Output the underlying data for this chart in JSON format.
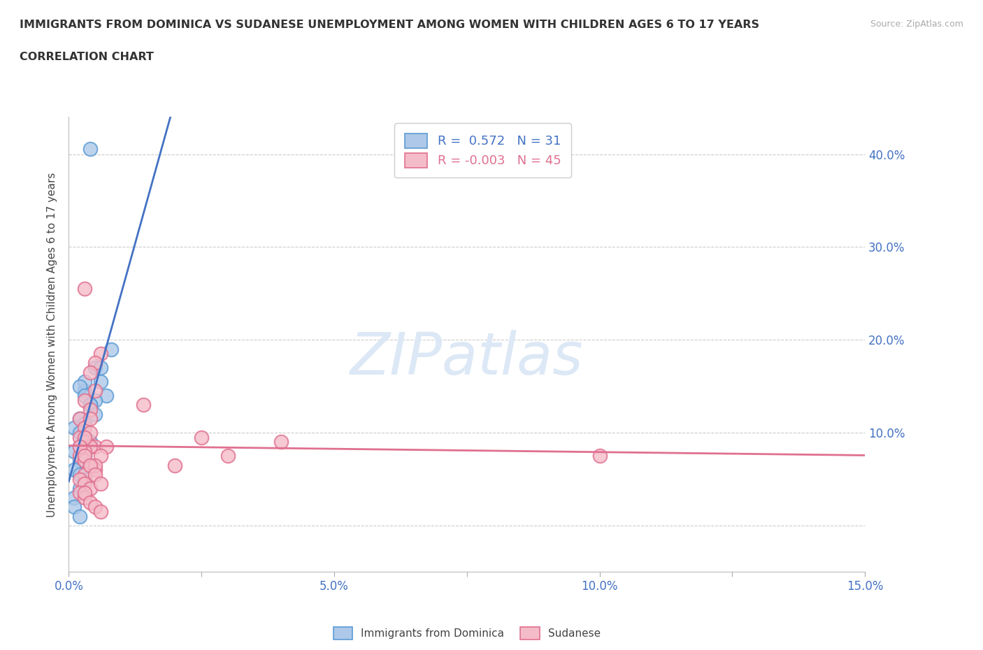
{
  "title_line1": "IMMIGRANTS FROM DOMINICA VS SUDANESE UNEMPLOYMENT AMONG WOMEN WITH CHILDREN AGES 6 TO 17 YEARS",
  "title_line2": "CORRELATION CHART",
  "source": "Source: ZipAtlas.com",
  "ylabel": "Unemployment Among Women with Children Ages 6 to 17 years",
  "xlim": [
    0.0,
    0.15
  ],
  "ylim": [
    -0.05,
    0.44
  ],
  "xticks": [
    0.0,
    0.025,
    0.05,
    0.075,
    0.1,
    0.125,
    0.15
  ],
  "xticklabels": [
    "0.0%",
    "",
    "5.0%",
    "",
    "10.0%",
    "",
    "15.0%"
  ],
  "yticks": [
    0.0,
    0.1,
    0.2,
    0.3,
    0.4
  ],
  "yticklabels_right": [
    "",
    "10.0%",
    "20.0%",
    "30.0%",
    "40.0%"
  ],
  "dominica_R": 0.572,
  "dominica_N": 31,
  "sudanese_R": -0.003,
  "sudanese_N": 45,
  "dominica_color": "#adc8e8",
  "dominica_edge_color": "#5b9bd5",
  "sudanese_color": "#f4bcc8",
  "sudanese_edge_color": "#e07090",
  "dominica_line_color": "#4472c4",
  "sudanese_line_color": "#e07090",
  "grid_color": "#cccccc",
  "background_color": "#ffffff",
  "watermark_color": "#dce8f5",
  "dom_x": [
    0.004,
    0.008,
    0.005,
    0.006,
    0.003,
    0.007,
    0.005,
    0.004,
    0.006,
    0.003,
    0.002,
    0.003,
    0.004,
    0.005,
    0.002,
    0.003,
    0.001,
    0.002,
    0.003,
    0.004,
    0.002,
    0.001,
    0.003,
    0.002,
    0.001,
    0.002,
    0.003,
    0.002,
    0.001,
    0.001,
    0.002
  ],
  "dom_y": [
    0.406,
    0.19,
    0.17,
    0.155,
    0.145,
    0.14,
    0.135,
    0.13,
    0.17,
    0.155,
    0.15,
    0.14,
    0.13,
    0.12,
    0.115,
    0.11,
    0.105,
    0.1,
    0.095,
    0.09,
    0.085,
    0.08,
    0.075,
    0.07,
    0.06,
    0.055,
    0.05,
    0.04,
    0.03,
    0.02,
    0.01
  ],
  "sud_x": [
    0.003,
    0.006,
    0.005,
    0.004,
    0.005,
    0.003,
    0.004,
    0.002,
    0.003,
    0.004,
    0.002,
    0.003,
    0.005,
    0.004,
    0.003,
    0.002,
    0.003,
    0.004,
    0.005,
    0.003,
    0.002,
    0.003,
    0.004,
    0.002,
    0.003,
    0.014,
    0.007,
    0.006,
    0.005,
    0.004,
    0.003,
    0.002,
    0.003,
    0.004,
    0.005,
    0.006,
    0.003,
    0.004,
    0.005,
    0.006,
    0.04,
    0.025,
    0.03,
    0.02,
    0.1
  ],
  "sud_y": [
    0.255,
    0.185,
    0.175,
    0.165,
    0.145,
    0.135,
    0.125,
    0.115,
    0.105,
    0.1,
    0.095,
    0.09,
    0.085,
    0.085,
    0.08,
    0.075,
    0.07,
    0.065,
    0.06,
    0.055,
    0.05,
    0.045,
    0.04,
    0.035,
    0.03,
    0.13,
    0.085,
    0.075,
    0.065,
    0.115,
    0.095,
    0.085,
    0.075,
    0.065,
    0.055,
    0.045,
    0.035,
    0.025,
    0.02,
    0.015,
    0.09,
    0.095,
    0.075,
    0.065,
    0.075
  ]
}
